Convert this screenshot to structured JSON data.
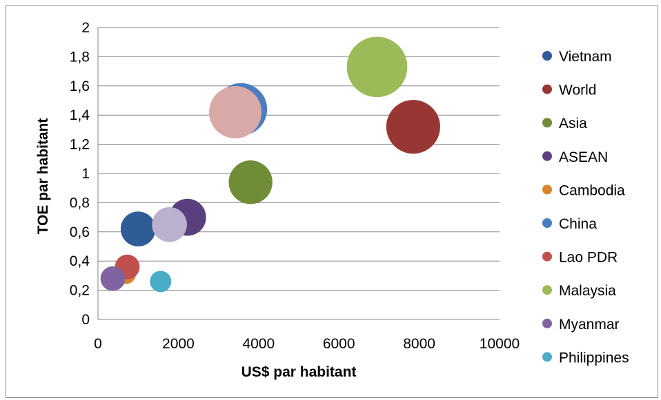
{
  "chart_data": {
    "type": "scatter",
    "subtype": "bubble",
    "title": "",
    "xlabel": "US$ par habitant",
    "ylabel": "TOE par habitant",
    "xlim": [
      0,
      10000
    ],
    "ylim": [
      0,
      2
    ],
    "x_ticks": [
      "0",
      "2000",
      "4000",
      "6000",
      "8000",
      "10000"
    ],
    "y_ticks": [
      "0",
      "0,2",
      "0,4",
      "0,6",
      "0,8",
      "1",
      "1,2",
      "1,4",
      "1,6",
      "1,8",
      "2"
    ],
    "grid": {
      "horizontal": true,
      "vertical": false
    },
    "legend_position": "right",
    "series": [
      {
        "name": "Vietnam",
        "color": "#2f5b97",
        "x": 1000,
        "y": 0.62,
        "size": 1.6
      },
      {
        "name": "World",
        "color": "#983634",
        "x": 7850,
        "y": 1.32,
        "size": 3.8
      },
      {
        "name": "Asia",
        "color": "#6f8c36",
        "x": 3800,
        "y": 0.94,
        "size": 2.5
      },
      {
        "name": "ASEAN",
        "color": "#5a3f7e",
        "x": 2230,
        "y": 0.7,
        "size": 1.8
      },
      {
        "name": "Cambodia",
        "color": "#d9832d",
        "x": 700,
        "y": 0.31,
        "size": 0.5
      },
      {
        "name": "China",
        "color": "#4a7ec1",
        "x": 3560,
        "y": 1.44,
        "size": 3.6
      },
      {
        "name": "Lao PDR",
        "color": "#c0504d",
        "x": 730,
        "y": 0.36,
        "size": 0.8
      },
      {
        "name": "Malaysia",
        "color": "#9bbb59",
        "x": 6950,
        "y": 1.73,
        "size": 4.8
      },
      {
        "name": "Myanmar",
        "color": "#8064a2",
        "x": 370,
        "y": 0.28,
        "size": 0.8
      },
      {
        "name": "Philippines",
        "color": "#4bacc6",
        "x": 1560,
        "y": 0.26,
        "size": 0.6
      }
    ],
    "extra_points": [
      {
        "color": "#d9a9a7",
        "x": 3420,
        "y": 1.42,
        "size": 3.6
      },
      {
        "color": "#bcb0cf",
        "x": 1780,
        "y": 0.65,
        "size": 1.6
      }
    ]
  }
}
